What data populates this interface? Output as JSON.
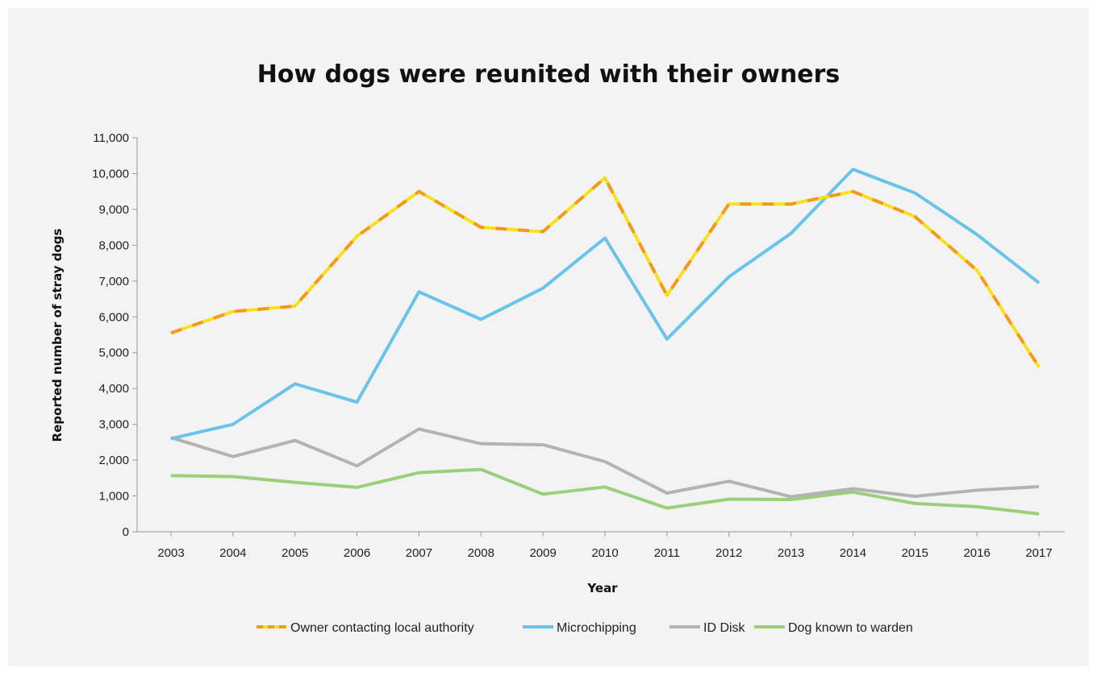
{
  "chart_data": {
    "type": "line",
    "title": "How dogs were reunited with their owners",
    "xlabel": "Year",
    "ylabel": "Reported number of stray dogs",
    "categories": [
      "2003",
      "2004",
      "2005",
      "2006",
      "2007",
      "2008",
      "2009",
      "2010",
      "2011",
      "2012",
      "2013",
      "2014",
      "2015",
      "2016",
      "2017"
    ],
    "ylim": [
      0,
      11000
    ],
    "yticks": [
      0,
      1000,
      2000,
      3000,
      4000,
      5000,
      6000,
      7000,
      8000,
      9000,
      10000,
      11000
    ],
    "ytick_labels": [
      "0",
      "1,000",
      "2,000",
      "3,000",
      "4,000",
      "5,000",
      "6,000",
      "7,000",
      "8,000",
      "9,000",
      "10,000",
      "11,000"
    ],
    "grid": false,
    "legend_position": "bottom",
    "series": [
      {
        "name": "Owner contacting local authority",
        "color": "#f39a1e",
        "dash_color": "#f7e11c",
        "style": "dashed",
        "values": [
          5550,
          6150,
          6300,
          8250,
          9500,
          8500,
          8380,
          9880,
          6600,
          9150,
          9150,
          9500,
          8800,
          7300,
          4600
        ]
      },
      {
        "name": "Microchipping",
        "color": "#6ac4ea",
        "style": "solid",
        "values": [
          2600,
          3000,
          4130,
          3620,
          6700,
          5930,
          6800,
          8200,
          5380,
          7120,
          8330,
          10120,
          9460,
          8300,
          6950
        ]
      },
      {
        "name": "ID Disk",
        "color": "#b3b3b3",
        "style": "solid",
        "values": [
          2630,
          2100,
          2550,
          1840,
          2870,
          2460,
          2430,
          1960,
          1080,
          1410,
          980,
          1200,
          990,
          1160,
          1260
        ]
      },
      {
        "name": "Dog known to warden",
        "color": "#9bd07a",
        "style": "solid",
        "values": [
          1570,
          1540,
          1380,
          1240,
          1650,
          1740,
          1050,
          1250,
          660,
          910,
          900,
          1110,
          790,
          700,
          500
        ]
      }
    ]
  }
}
